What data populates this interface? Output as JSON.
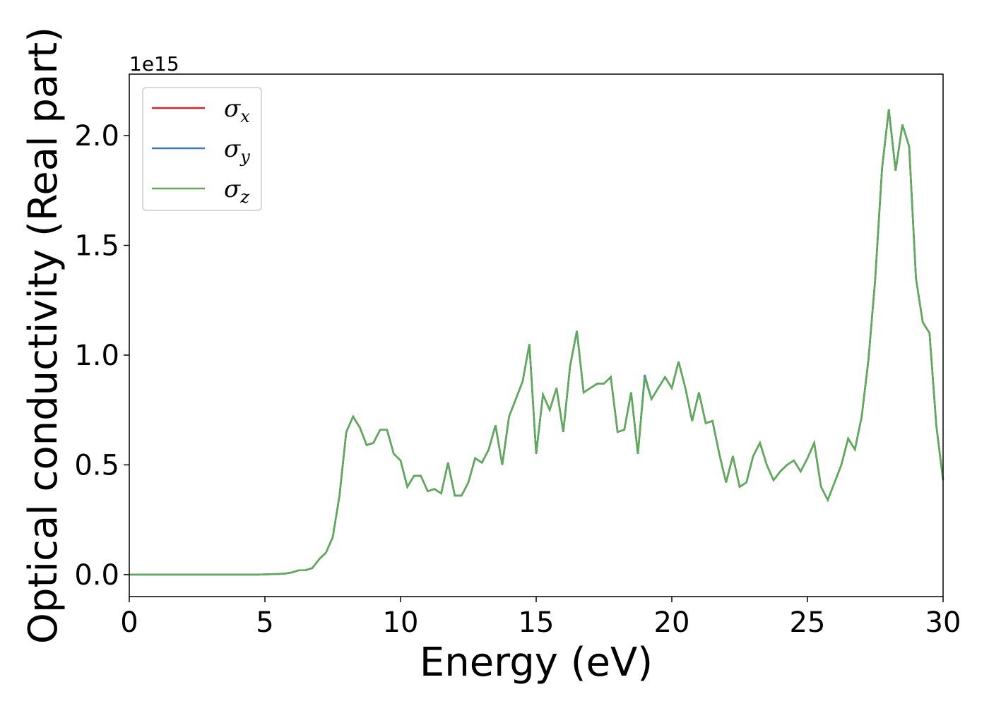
{
  "chart_data": {
    "type": "line",
    "xlabel": "Energy (eV)",
    "ylabel": "Optical conductivity (Real part)",
    "y_offset_label": "1e15",
    "xlim": [
      0,
      30
    ],
    "ylim": [
      -0.1,
      2.28
    ],
    "xticks": [
      0,
      5,
      10,
      15,
      20,
      25,
      30
    ],
    "yticks": [
      {
        "value": 0,
        "label": "0.0"
      },
      0.5,
      {
        "value": 1,
        "label": "1.0"
      },
      1.5,
      {
        "value": 2,
        "label": "2.0"
      }
    ],
    "legend": "upper left",
    "x": [
      0,
      0.25,
      0.5,
      0.75,
      1,
      1.25,
      1.5,
      1.75,
      2,
      2.25,
      2.5,
      2.75,
      3,
      3.25,
      3.5,
      3.75,
      4,
      4.25,
      4.5,
      4.75,
      5,
      5.25,
      5.5,
      5.75,
      6,
      6.25,
      6.5,
      6.75,
      7,
      7.25,
      7.5,
      7.75,
      8,
      8.25,
      8.5,
      8.75,
      9,
      9.25,
      9.5,
      9.75,
      10,
      10.25,
      10.5,
      10.75,
      11,
      11.25,
      11.5,
      11.75,
      12,
      12.25,
      12.5,
      12.75,
      13,
      13.25,
      13.5,
      13.75,
      14,
      14.25,
      14.5,
      14.75,
      15,
      15.25,
      15.5,
      15.75,
      16,
      16.25,
      16.5,
      16.75,
      17,
      17.25,
      17.5,
      17.75,
      18,
      18.25,
      18.5,
      18.75,
      19,
      19.25,
      19.5,
      19.75,
      20,
      20.25,
      20.5,
      20.75,
      21,
      21.25,
      21.5,
      21.75,
      22,
      22.25,
      22.5,
      22.75,
      23,
      23.25,
      23.5,
      23.75,
      24,
      24.25,
      24.5,
      24.75,
      25,
      25.25,
      25.5,
      25.75,
      26,
      26.25,
      26.5,
      26.75,
      27,
      27.25,
      27.5,
      27.75,
      28,
      28.25,
      28.5,
      28.75,
      29,
      29.25,
      29.5,
      29.75,
      30
    ],
    "series": [
      {
        "name": "σx",
        "color": "#d62728",
        "values": [
          0,
          0,
          0,
          0,
          0,
          0,
          0,
          0,
          0,
          0,
          0,
          0,
          0,
          0,
          0,
          0,
          0,
          0,
          0,
          0,
          0.001,
          0.002,
          0.003,
          0.005,
          0.01,
          0.02,
          0.02,
          0.03,
          0.07,
          0.1,
          0.17,
          0.36,
          0.65,
          0.72,
          0.67,
          0.59,
          0.6,
          0.66,
          0.66,
          0.55,
          0.52,
          0.4,
          0.45,
          0.45,
          0.38,
          0.39,
          0.37,
          0.51,
          0.36,
          0.36,
          0.42,
          0.53,
          0.51,
          0.57,
          0.68,
          0.5,
          0.72,
          0.8,
          0.88,
          1.05,
          0.55,
          0.82,
          0.75,
          0.85,
          0.65,
          0.95,
          1.11,
          0.83,
          0.85,
          0.87,
          0.87,
          0.9,
          0.65,
          0.66,
          0.83,
          0.55,
          0.9,
          0.8,
          0.85,
          0.9,
          0.85,
          0.97,
          0.85,
          0.7,
          0.83,
          0.69,
          0.7,
          0.55,
          0.42,
          0.54,
          0.4,
          0.42,
          0.54,
          0.6,
          0.5,
          0.43,
          0.47,
          0.5,
          0.52,
          0.47,
          0.53,
          0.6,
          0.4,
          0.34,
          0.42,
          0.5,
          0.62,
          0.57,
          0.72,
          0.98,
          1.35,
          1.85,
          2.12,
          1.84,
          2.05,
          1.95,
          1.35,
          1.15,
          1.1,
          0.68,
          0.43
        ]
      },
      {
        "name": "σy",
        "color": "#3a7ebf",
        "values": [
          0,
          0,
          0,
          0,
          0,
          0,
          0,
          0,
          0,
          0,
          0,
          0,
          0,
          0,
          0,
          0,
          0,
          0,
          0,
          0,
          0.001,
          0.002,
          0.003,
          0.005,
          0.01,
          0.02,
          0.02,
          0.03,
          0.07,
          0.1,
          0.17,
          0.36,
          0.65,
          0.72,
          0.67,
          0.59,
          0.6,
          0.66,
          0.66,
          0.55,
          0.52,
          0.4,
          0.45,
          0.45,
          0.38,
          0.39,
          0.37,
          0.51,
          0.36,
          0.36,
          0.42,
          0.53,
          0.51,
          0.57,
          0.68,
          0.5,
          0.72,
          0.8,
          0.88,
          1.05,
          0.55,
          0.82,
          0.75,
          0.85,
          0.65,
          0.95,
          1.11,
          0.83,
          0.85,
          0.87,
          0.87,
          0.9,
          0.65,
          0.66,
          0.83,
          0.55,
          0.91,
          0.8,
          0.85,
          0.9,
          0.85,
          0.97,
          0.85,
          0.7,
          0.83,
          0.69,
          0.7,
          0.55,
          0.42,
          0.54,
          0.4,
          0.42,
          0.54,
          0.6,
          0.5,
          0.43,
          0.47,
          0.5,
          0.52,
          0.47,
          0.53,
          0.6,
          0.4,
          0.34,
          0.42,
          0.5,
          0.62,
          0.57,
          0.72,
          0.98,
          1.35,
          1.85,
          2.12,
          1.84,
          2.05,
          1.95,
          1.35,
          1.15,
          1.1,
          0.68,
          0.43
        ]
      },
      {
        "name": "σz",
        "color": "#5aad55",
        "values": [
          0,
          0,
          0,
          0,
          0,
          0,
          0,
          0,
          0,
          0,
          0,
          0,
          0,
          0,
          0,
          0,
          0,
          0,
          0,
          0,
          0.001,
          0.002,
          0.003,
          0.005,
          0.01,
          0.02,
          0.02,
          0.03,
          0.07,
          0.1,
          0.17,
          0.36,
          0.65,
          0.72,
          0.67,
          0.59,
          0.6,
          0.66,
          0.66,
          0.55,
          0.52,
          0.4,
          0.45,
          0.45,
          0.38,
          0.39,
          0.37,
          0.51,
          0.36,
          0.36,
          0.42,
          0.53,
          0.51,
          0.57,
          0.68,
          0.5,
          0.72,
          0.8,
          0.88,
          1.05,
          0.55,
          0.82,
          0.75,
          0.85,
          0.65,
          0.95,
          1.11,
          0.83,
          0.85,
          0.87,
          0.87,
          0.9,
          0.65,
          0.66,
          0.83,
          0.55,
          0.9,
          0.8,
          0.85,
          0.9,
          0.85,
          0.97,
          0.85,
          0.7,
          0.83,
          0.69,
          0.7,
          0.55,
          0.42,
          0.54,
          0.4,
          0.42,
          0.54,
          0.6,
          0.5,
          0.43,
          0.47,
          0.5,
          0.52,
          0.47,
          0.53,
          0.6,
          0.4,
          0.34,
          0.42,
          0.5,
          0.62,
          0.57,
          0.72,
          0.98,
          1.35,
          1.85,
          2.12,
          1.84,
          2.05,
          1.95,
          1.35,
          1.15,
          1.1,
          0.68,
          0.43
        ]
      }
    ]
  }
}
